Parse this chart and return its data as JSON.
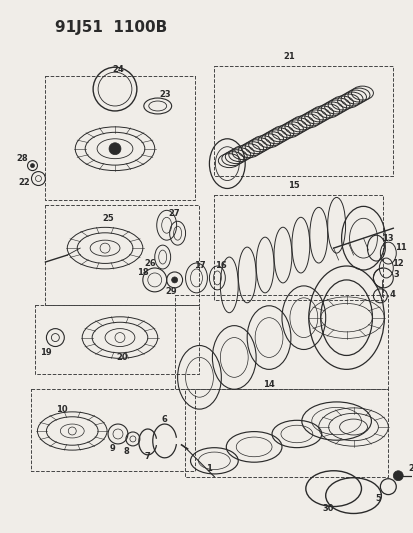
{
  "title": "91J51  1100B",
  "bg_color": "#f0ede8",
  "line_color": "#2a2a2a",
  "dash_color": "#444444",
  "lw_main": 0.8,
  "lw_thin": 0.5,
  "figsize": [
    4.14,
    5.33
  ],
  "dpi": 100
}
